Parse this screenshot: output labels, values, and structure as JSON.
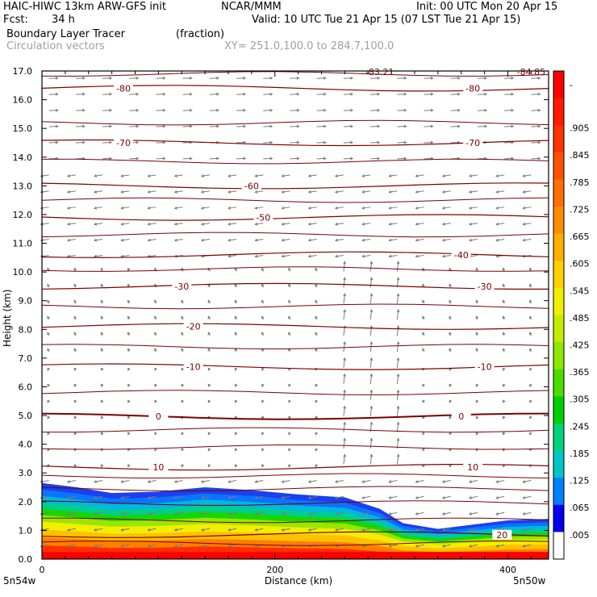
{
  "header": {
    "model": "HAIC-HIWC 13km ARW-GFS init",
    "org": "NCAR/MMM",
    "init": "Init: 00 UTC Mon 20 Apr 15",
    "fcst_label": "Fcst:",
    "fcst_value": "34 h",
    "valid": "Valid: 10 UTC Tue 21 Apr 15 (07 LST Tue 21 Apr 15)",
    "field": "Boundary Layer Tracer",
    "field_units": "(fraction)",
    "vectors_label": "Circulation vectors",
    "xy_label": "XY= 251.0,100.0 to 284.7,100.0"
  },
  "colors": {
    "contour": "#7a0000",
    "vector": "#7a7a7a",
    "frame": "#000000",
    "xy_gray": "#a0a0a0"
  },
  "chart_data": {
    "type": "heatmap",
    "xlabel": "Distance (km)",
    "ylabel": "Height (km)",
    "xlim": [
      0,
      435
    ],
    "ylim": [
      0,
      17
    ],
    "x_ticks": [
      0,
      200,
      400
    ],
    "y_ticks": [
      0.0,
      1.0,
      2.0,
      3.0,
      4.0,
      5.0,
      6.0,
      7.0,
      8.0,
      9.0,
      10.0,
      11.0,
      12.0,
      13.0,
      14.0,
      15.0,
      16.0,
      17.0
    ],
    "x_endpoint_labels": {
      "left": "5n54w",
      "right": "5n50w"
    },
    "colorbar": {
      "labels": [
        "-",
        ".905",
        ".845",
        ".785",
        ".725",
        ".665",
        ".605",
        ".545",
        ".485",
        ".425",
        ".365",
        ".305",
        ".245",
        ".185",
        ".125",
        ".065",
        ".005"
      ],
      "colors": [
        "#ff0000",
        "#ff1a00",
        "#ff3400",
        "#ff5000",
        "#ff6e00",
        "#ff8c00",
        "#ffae00",
        "#ffd000",
        "#f0ef00",
        "#c4ec00",
        "#8fe600",
        "#4cdc00",
        "#00d000",
        "#00d37a",
        "#00c6c6",
        "#0080ff",
        "#0000ee",
        "#ffffff"
      ]
    },
    "temperature_contours_degC": [
      {
        "value": -80,
        "height_km": 16.4,
        "labels": [
          "-80",
          "-80"
        ]
      },
      {
        "value": -70,
        "height_km": 14.5,
        "labels": [
          "-70",
          "-70"
        ]
      },
      {
        "value": -60,
        "height_km": 13.0,
        "labels": [
          "-60"
        ]
      },
      {
        "value": -50,
        "height_km": 11.9,
        "labels": [
          "-50"
        ]
      },
      {
        "value": -40,
        "height_km": 10.6,
        "labels": [
          "-40"
        ]
      },
      {
        "value": -30,
        "height_km": 9.5,
        "labels": [
          "-30",
          "-30"
        ]
      },
      {
        "value": -20,
        "height_km": 8.1,
        "labels": [
          "-20"
        ]
      },
      {
        "value": -10,
        "height_km": 6.7,
        "labels": [
          "-10",
          "-10"
        ]
      },
      {
        "value": 0,
        "height_km": 4.97,
        "labels": [
          "0",
          "0"
        ]
      },
      {
        "value": 10,
        "height_km": 3.2,
        "labels": [
          "10",
          "10"
        ]
      },
      {
        "value": 20,
        "height_km": 0.85,
        "labels": [
          "20"
        ]
      }
    ],
    "top_labels": [
      "-83.21",
      "-84.85"
    ],
    "tracer_top_km": [
      {
        "x": 0,
        "h": 2.65
      },
      {
        "x": 30,
        "h": 2.5
      },
      {
        "x": 60,
        "h": 2.3
      },
      {
        "x": 100,
        "h": 2.35
      },
      {
        "x": 140,
        "h": 2.5
      },
      {
        "x": 180,
        "h": 2.4
      },
      {
        "x": 220,
        "h": 2.25
      },
      {
        "x": 260,
        "h": 2.15
      },
      {
        "x": 290,
        "h": 1.75
      },
      {
        "x": 310,
        "h": 1.25
      },
      {
        "x": 340,
        "h": 1.05
      },
      {
        "x": 370,
        "h": 1.2
      },
      {
        "x": 400,
        "h": 1.35
      },
      {
        "x": 435,
        "h": 1.4
      }
    ]
  }
}
